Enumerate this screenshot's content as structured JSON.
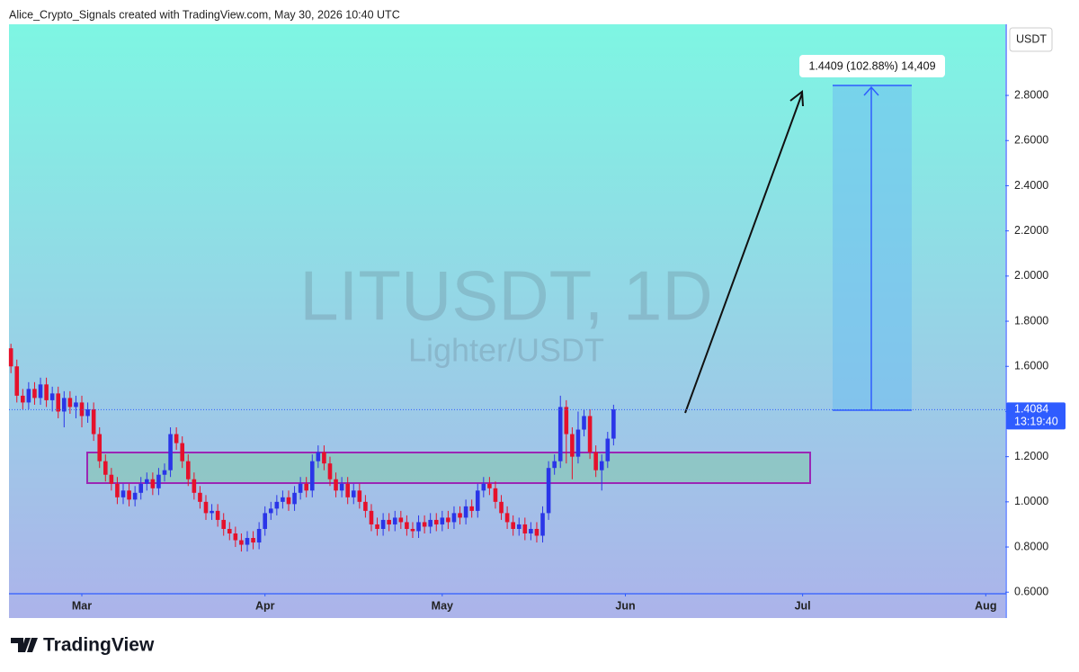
{
  "header": "Alice_Crypto_Signals created with TradingView.com, May 30, 2026 10:40 UTC",
  "footer_brand": "TradingView",
  "chart_data": {
    "type": "candlestick",
    "title": "LITUSDT, 1D",
    "subtitle": "Lighter/USDT",
    "currency": "USDT",
    "x": [
      0,
      1,
      2,
      3,
      4,
      5,
      6,
      7,
      8,
      9,
      10,
      11,
      12,
      13,
      14,
      15,
      16,
      17,
      18,
      19,
      20,
      21,
      22,
      23,
      24,
      25,
      26,
      27,
      28,
      29,
      30,
      31,
      32,
      33,
      34,
      35,
      36,
      37,
      38,
      39,
      40,
      41,
      42,
      43,
      44,
      45,
      46,
      47,
      48,
      49,
      50,
      51,
      52,
      53,
      54,
      55,
      56,
      57,
      58,
      59,
      60,
      61,
      62,
      63,
      64,
      65,
      66,
      67,
      68,
      69,
      70,
      71,
      72,
      73,
      74,
      75,
      76,
      77,
      78,
      79,
      80,
      81,
      82,
      83,
      84,
      85,
      86,
      87,
      88,
      89,
      90,
      91,
      92,
      93,
      94,
      95,
      96,
      97,
      98,
      99,
      100,
      101,
      102
    ],
    "open": [
      1.68,
      1.6,
      1.47,
      1.44,
      1.5,
      1.46,
      1.52,
      1.45,
      1.48,
      1.4,
      1.46,
      1.42,
      1.44,
      1.38,
      1.41,
      1.3,
      1.18,
      1.12,
      1.08,
      1.02,
      1.05,
      1.01,
      1.04,
      1.08,
      1.1,
      1.06,
      1.12,
      1.14,
      1.3,
      1.26,
      1.18,
      1.1,
      1.04,
      1.0,
      0.95,
      0.96,
      0.92,
      0.88,
      0.86,
      0.83,
      0.81,
      0.84,
      0.82,
      0.88,
      0.95,
      0.97,
      1.0,
      1.02,
      0.99,
      1.04,
      1.08,
      1.05,
      1.18,
      1.22,
      1.17,
      1.1,
      1.05,
      1.08,
      1.02,
      1.05,
      1.0,
      0.96,
      0.9,
      0.88,
      0.92,
      0.9,
      0.93,
      0.91,
      0.88,
      0.87,
      0.91,
      0.89,
      0.92,
      0.9,
      0.93,
      0.91,
      0.95,
      0.93,
      0.98,
      0.96,
      1.05,
      1.08,
      1.06,
      1.0,
      0.95,
      0.91,
      0.88,
      0.9,
      0.86,
      0.88,
      0.85,
      0.95,
      1.15,
      1.18,
      1.42,
      1.3,
      1.2,
      1.32,
      1.38,
      1.22,
      1.14,
      1.18,
      1.28
    ],
    "high": [
      1.7,
      1.63,
      1.5,
      1.53,
      1.53,
      1.55,
      1.55,
      1.51,
      1.51,
      1.49,
      1.49,
      1.47,
      1.47,
      1.44,
      1.44,
      1.33,
      1.21,
      1.15,
      1.11,
      1.08,
      1.08,
      1.07,
      1.11,
      1.13,
      1.13,
      1.15,
      1.17,
      1.33,
      1.33,
      1.29,
      1.21,
      1.13,
      1.07,
      1.03,
      0.99,
      0.99,
      0.95,
      0.91,
      0.89,
      0.86,
      0.87,
      0.87,
      0.91,
      0.98,
      1.0,
      1.03,
      1.05,
      1.05,
      1.07,
      1.11,
      1.11,
      1.21,
      1.25,
      1.25,
      1.2,
      1.13,
      1.11,
      1.11,
      1.08,
      1.08,
      1.03,
      0.99,
      0.93,
      0.95,
      0.95,
      0.96,
      0.96,
      0.94,
      0.91,
      0.94,
      0.94,
      0.95,
      0.95,
      0.96,
      0.96,
      0.98,
      0.98,
      1.01,
      1.01,
      1.08,
      1.11,
      1.11,
      1.09,
      1.03,
      0.98,
      0.94,
      0.93,
      0.93,
      0.91,
      0.91,
      0.98,
      1.18,
      1.21,
      1.47,
      1.45,
      1.33,
      1.4,
      1.41,
      1.41,
      1.25,
      1.21,
      1.31,
      1.43
    ],
    "low": [
      1.57,
      1.44,
      1.41,
      1.41,
      1.43,
      1.43,
      1.42,
      1.4,
      1.37,
      1.33,
      1.39,
      1.37,
      1.33,
      1.35,
      1.27,
      1.15,
      1.09,
      1.05,
      0.99,
      0.99,
      0.98,
      0.98,
      1.01,
      1.05,
      1.03,
      1.03,
      1.09,
      1.11,
      1.23,
      1.15,
      1.07,
      1.01,
      0.97,
      0.92,
      0.92,
      0.89,
      0.85,
      0.83,
      0.8,
      0.78,
      0.78,
      0.79,
      0.79,
      0.85,
      0.92,
      0.94,
      0.97,
      0.96,
      0.96,
      1.01,
      1.02,
      1.02,
      1.15,
      1.14,
      1.07,
      1.02,
      1.02,
      0.99,
      0.99,
      0.97,
      0.93,
      0.87,
      0.85,
      0.85,
      0.87,
      0.87,
      0.88,
      0.85,
      0.84,
      0.84,
      0.86,
      0.86,
      0.87,
      0.87,
      0.88,
      0.88,
      0.9,
      0.9,
      0.93,
      0.93,
      1.02,
      1.03,
      0.97,
      0.92,
      0.88,
      0.85,
      0.85,
      0.83,
      0.83,
      0.82,
      0.82,
      0.92,
      1.12,
      1.15,
      1.17,
      1.1,
      1.17,
      1.29,
      1.19,
      1.11,
      1.05,
      1.15,
      1.25
    ],
    "close": [
      1.6,
      1.47,
      1.44,
      1.5,
      1.46,
      1.52,
      1.45,
      1.48,
      1.4,
      1.46,
      1.42,
      1.44,
      1.38,
      1.41,
      1.3,
      1.18,
      1.12,
      1.08,
      1.02,
      1.05,
      1.01,
      1.04,
      1.08,
      1.1,
      1.06,
      1.12,
      1.14,
      1.3,
      1.26,
      1.18,
      1.1,
      1.04,
      1.0,
      0.95,
      0.96,
      0.92,
      0.88,
      0.86,
      0.83,
      0.81,
      0.84,
      0.82,
      0.88,
      0.95,
      0.97,
      1.0,
      1.02,
      0.99,
      1.04,
      1.08,
      1.05,
      1.18,
      1.22,
      1.17,
      1.1,
      1.05,
      1.08,
      1.02,
      1.05,
      1.0,
      0.96,
      0.9,
      0.88,
      0.92,
      0.9,
      0.93,
      0.91,
      0.88,
      0.87,
      0.91,
      0.89,
      0.92,
      0.9,
      0.93,
      0.91,
      0.95,
      0.93,
      0.98,
      0.96,
      1.05,
      1.08,
      1.06,
      1.0,
      0.95,
      0.91,
      0.88,
      0.9,
      0.86,
      0.88,
      0.85,
      0.95,
      1.15,
      1.18,
      1.42,
      1.3,
      1.2,
      1.32,
      1.38,
      1.22,
      1.14,
      1.18,
      1.28,
      1.41
    ],
    "up_color": "#2a35e8",
    "down_color": "#e5112b",
    "xlim": [
      -0.33,
      168.3
    ],
    "xticks": [
      {
        "value": 12,
        "label": "Mar"
      },
      {
        "value": 43,
        "label": "Apr"
      },
      {
        "value": 73,
        "label": "May"
      },
      {
        "value": 104,
        "label": "Jun"
      },
      {
        "value": 134,
        "label": "Jul"
      },
      {
        "value": 165,
        "label": "Aug"
      }
    ],
    "ylim": [
      0.593,
      3.115
    ],
    "yticks": [
      {
        "value": 0.6,
        "label": "0.6000"
      },
      {
        "value": 0.8,
        "label": "0.8000"
      },
      {
        "value": 1.0,
        "label": "1.0000"
      },
      {
        "value": 1.2,
        "label": "1.2000"
      },
      {
        "value": 1.4,
        "label": "1.4000"
      },
      {
        "value": 1.6,
        "label": "1.6000"
      },
      {
        "value": 1.8,
        "label": "1.8000"
      },
      {
        "value": 2.0,
        "label": "2.0000"
      },
      {
        "value": 2.2,
        "label": "2.2000"
      },
      {
        "value": 2.4,
        "label": "2.4000"
      },
      {
        "value": 2.6,
        "label": "2.6000"
      },
      {
        "value": 2.8,
        "label": "2.8000"
      }
    ],
    "last_price": 1.4084,
    "countdown": "13:19:40",
    "projection_label": "1.4409 (102.88%) 14,409"
  }
}
